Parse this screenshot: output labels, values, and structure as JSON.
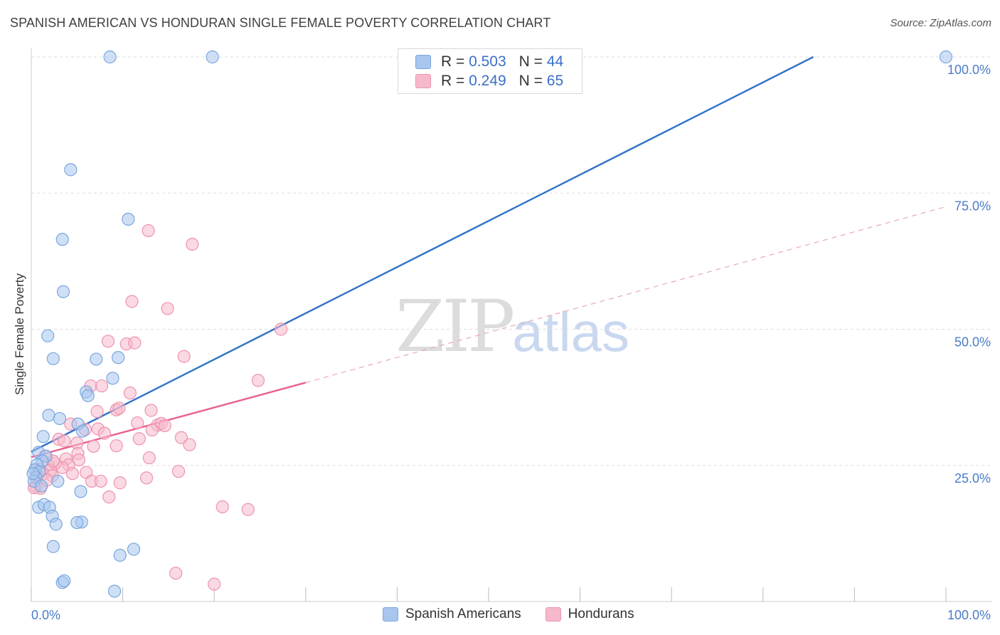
{
  "header": {
    "title": "SPANISH AMERICAN VS HONDURAN SINGLE FEMALE POVERTY CORRELATION CHART",
    "source": "Source: ZipAtlas.com"
  },
  "watermark": {
    "zip": "ZIP",
    "atlas": "atlas"
  },
  "legend_top": {
    "rows": [
      {
        "r_label": "R = ",
        "r_value": "0.503",
        "n_label": "N = ",
        "n_value": "44"
      },
      {
        "r_label": "R = ",
        "r_value": "0.249",
        "n_label": "N = ",
        "n_value": "65"
      }
    ]
  },
  "legend_bottom": {
    "items": [
      "Spanish Americans",
      "Hondurans"
    ]
  },
  "colors": {
    "blue_fill": "#a8c6ee",
    "blue_stroke": "#7aa6de",
    "blue_line": "#2f72c9",
    "pink_fill": "#f6b9cb",
    "pink_stroke": "#ee93b0",
    "pink_line": "#e8608f",
    "grid": "#dddddd",
    "tick_text": "#4a7cc7"
  },
  "chart_data": {
    "type": "scatter",
    "title": "SPANISH AMERICAN VS HONDURAN SINGLE FEMALE POVERTY CORRELATION CHART",
    "xlabel": "",
    "ylabel": "Single Female Poverty",
    "xlim": [
      0,
      100
    ],
    "ylim": [
      0,
      100
    ],
    "x_tick_labels": [
      "0.0%",
      "100.0%"
    ],
    "y_ticks": [
      25,
      50,
      75,
      100
    ],
    "y_tick_labels": [
      "25.0%",
      "50.0%",
      "75.0%",
      "100.0%"
    ],
    "series": [
      {
        "name": "Spanish Americans",
        "r": 0.503,
        "n": 44,
        "trend": {
          "x0": 0,
          "y0": 27.5,
          "x1": 85.5,
          "y1": 100,
          "style": "solid"
        },
        "points": [
          [
            8.6,
            100
          ],
          [
            19.8,
            100
          ],
          [
            100,
            100
          ],
          [
            4.3,
            79.3
          ],
          [
            10.6,
            70.2
          ],
          [
            3.4,
            66.5
          ],
          [
            3.5,
            56.9
          ],
          [
            1.8,
            48.8
          ],
          [
            2.4,
            44.6
          ],
          [
            7.1,
            44.5
          ],
          [
            9.5,
            44.8
          ],
          [
            8.9,
            41
          ],
          [
            6.0,
            38.5
          ],
          [
            6.2,
            37.8
          ],
          [
            1.9,
            34.2
          ],
          [
            3.1,
            33.6
          ],
          [
            5.1,
            32.6
          ],
          [
            5.6,
            31.3
          ],
          [
            1.3,
            30.3
          ],
          [
            0.8,
            27.4
          ],
          [
            1.6,
            26.7
          ],
          [
            1.2,
            25.8
          ],
          [
            0.6,
            25.1
          ],
          [
            0.4,
            24.2
          ],
          [
            0.9,
            23.8
          ],
          [
            0.5,
            22.8
          ],
          [
            0.3,
            22.1
          ],
          [
            2.9,
            22.1
          ],
          [
            1.1,
            21.2
          ],
          [
            5.4,
            20.2
          ],
          [
            0.8,
            17.3
          ],
          [
            1.4,
            17.8
          ],
          [
            2.0,
            17.3
          ],
          [
            2.3,
            15.7
          ],
          [
            2.7,
            14.2
          ],
          [
            5.5,
            14.6
          ],
          [
            5.0,
            14.5
          ],
          [
            2.4,
            10.1
          ],
          [
            11.2,
            9.6
          ],
          [
            9.7,
            8.5
          ],
          [
            3.4,
            3.5
          ],
          [
            3.6,
            3.8
          ],
          [
            9.1,
            1.9
          ],
          [
            0.2,
            23.5
          ]
        ]
      },
      {
        "name": "Hondurans",
        "r": 0.249,
        "n": 65,
        "trend": {
          "x0": 0,
          "y0": 26.5,
          "x1": 30,
          "y1": 40.2,
          "style": "solid"
        },
        "trend_ext": {
          "x0": 30,
          "y0": 40.2,
          "x1": 100,
          "y1": 72.5,
          "style": "dashed"
        },
        "points": [
          [
            12.8,
            68.1
          ],
          [
            17.6,
            65.6
          ],
          [
            11.0,
            55.1
          ],
          [
            14.9,
            53.8
          ],
          [
            27.3,
            50
          ],
          [
            8.4,
            47.8
          ],
          [
            10.4,
            47.3
          ],
          [
            11.3,
            47.5
          ],
          [
            16.7,
            45
          ],
          [
            24.8,
            40.6
          ],
          [
            6.5,
            39.6
          ],
          [
            7.7,
            39.6
          ],
          [
            10.8,
            38.3
          ],
          [
            7.2,
            34.9
          ],
          [
            9.3,
            35.2
          ],
          [
            9.6,
            35.5
          ],
          [
            13.1,
            35.1
          ],
          [
            11.6,
            32.8
          ],
          [
            13.8,
            32.4
          ],
          [
            14.2,
            32.7
          ],
          [
            14.6,
            32.3
          ],
          [
            4.3,
            32.6
          ],
          [
            7.3,
            31.7
          ],
          [
            5.9,
            31.6
          ],
          [
            13.2,
            31.5
          ],
          [
            8.0,
            30.9
          ],
          [
            16.4,
            30.1
          ],
          [
            11.8,
            29.9
          ],
          [
            3.0,
            29.8
          ],
          [
            5.0,
            29.1
          ],
          [
            9.3,
            28.6
          ],
          [
            6.8,
            28.5
          ],
          [
            17.3,
            28.8
          ],
          [
            5.1,
            27.2
          ],
          [
            12.9,
            26.4
          ],
          [
            3.8,
            26.2
          ],
          [
            4.1,
            25.1
          ],
          [
            3.4,
            24.6
          ],
          [
            2.6,
            25.4
          ],
          [
            1.8,
            25.1
          ],
          [
            0.9,
            24.3
          ],
          [
            2.1,
            24.1
          ],
          [
            6.0,
            23.7
          ],
          [
            1.3,
            23.5
          ],
          [
            0.6,
            23.3
          ],
          [
            2.3,
            23.1
          ],
          [
            4.5,
            23.5
          ],
          [
            16.1,
            23.9
          ],
          [
            12.6,
            22.7
          ],
          [
            1.7,
            22.3
          ],
          [
            6.6,
            22.1
          ],
          [
            7.6,
            22.1
          ],
          [
            9.7,
            21.8
          ],
          [
            0.5,
            21.1
          ],
          [
            1.0,
            20.8
          ],
          [
            0.3,
            20.9
          ],
          [
            8.5,
            19.2
          ],
          [
            20.9,
            17.4
          ],
          [
            23.7,
            16.9
          ],
          [
            15.8,
            5.2
          ],
          [
            20.0,
            3.2
          ],
          [
            3.6,
            29.5
          ],
          [
            5.2,
            26.0
          ],
          [
            2.4,
            25.8
          ],
          [
            1.5,
            26.7
          ]
        ]
      }
    ]
  }
}
